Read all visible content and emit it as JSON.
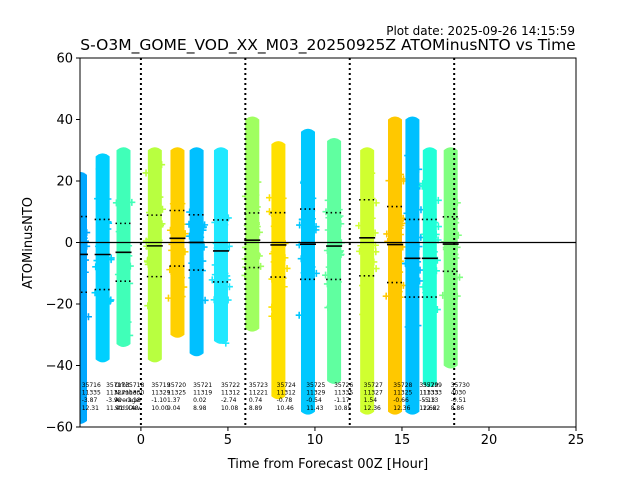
{
  "chart_data": {
    "type": "scatter",
    "title": "S-O3M_GOME_VOD_XX_M03_20250925Z ATOMinusNTO vs Time",
    "plot_date": "Plot date: 2025-09-26 14:15:59",
    "xlabel": "Time from Forecast 00Z [Hour]",
    "ylabel": "ATOMinusNTO",
    "xlim": [
      -3.5,
      25
    ],
    "ylim": [
      -60,
      60
    ],
    "xticks": [
      0,
      5,
      10,
      15,
      20,
      25
    ],
    "yticks": [
      -60,
      -40,
      -20,
      0,
      20,
      40,
      60
    ],
    "vlines": [
      0,
      6,
      12,
      18
    ],
    "hline": 0,
    "legend_labels": [
      "Orbit",
      "Number",
      "Average",
      "Std. Dev."
    ],
    "orbits": [
      {
        "x": -3.5,
        "orbit": "35716",
        "n": "11335",
        "mean": -3.87,
        "std": 12.31,
        "color": "#00a8ff",
        "lo": -60,
        "hi": 25,
        "p_lo": -58,
        "p_hi": 22
      },
      {
        "x": -2.2,
        "orbit": "35717",
        "n": "11327",
        "mean": -3.9,
        "std": 11.41,
        "color": "#00d0ff",
        "lo": -40,
        "hi": 30,
        "p_lo": -38,
        "p_hi": 28
      },
      {
        "x": -1.0,
        "orbit": "35718",
        "n": "11330",
        "mean": -3.18,
        "std": 9.4,
        "color": "#40ffb8",
        "lo": -34,
        "hi": 42,
        "p_lo": -33,
        "p_hi": 30
      },
      {
        "x": 0.8,
        "orbit": "35719",
        "n": "11329",
        "mean": -1.1,
        "std": 10.0,
        "color": "#b8ff40",
        "lo": -40,
        "hi": 39,
        "p_lo": -38,
        "p_hi": 30
      },
      {
        "x": 2.1,
        "orbit": "35720",
        "n": "11325",
        "mean": 1.37,
        "std": 9.04,
        "color": "#ffd000",
        "lo": -32,
        "hi": 38,
        "p_lo": -30,
        "p_hi": 30
      },
      {
        "x": 3.2,
        "orbit": "35721",
        "n": "11319",
        "mean": 0.02,
        "std": 8.98,
        "color": "#00c0ff",
        "lo": -38,
        "hi": 34,
        "p_lo": -36,
        "p_hi": 30
      },
      {
        "x": 4.6,
        "orbit": "35722",
        "n": "11312",
        "mean": -2.74,
        "std": 10.08,
        "color": "#20e8ff",
        "lo": -34,
        "hi": 34,
        "p_lo": -32,
        "p_hi": 30
      },
      {
        "x": 6.4,
        "orbit": "35723",
        "n": "11221",
        "mean": 0.74,
        "std": 8.89,
        "color": "#a0ff60",
        "lo": -36,
        "hi": 50,
        "p_lo": -28,
        "p_hi": 40
      },
      {
        "x": 7.9,
        "orbit": "35724",
        "n": "11312",
        "mean": -0.78,
        "std": 10.46,
        "color": "#ffe000",
        "lo": -58,
        "hi": 38,
        "p_lo": -50,
        "p_hi": 32
      },
      {
        "x": 9.6,
        "orbit": "35725",
        "n": "11329",
        "mean": -0.54,
        "std": 11.43,
        "color": "#00c8ff",
        "lo": -58,
        "hi": 42,
        "p_lo": -55,
        "p_hi": 36
      },
      {
        "x": 11.1,
        "orbit": "35726",
        "n": "11335",
        "mean": -1.17,
        "std": 10.85,
        "color": "#60ffa0",
        "lo": -60,
        "hi": 35,
        "p_lo": -45,
        "p_hi": 33
      },
      {
        "x": 13.0,
        "orbit": "35727",
        "n": "11327",
        "mean": 1.54,
        "std": 12.36,
        "color": "#d0ff30",
        "lo": -60,
        "hi": 35,
        "p_lo": -55,
        "p_hi": 30
      },
      {
        "x": 14.6,
        "orbit": "35728",
        "n": "11325",
        "mean": -0.66,
        "std": 12.36,
        "color": "#ffc800",
        "lo": -60,
        "hi": 44,
        "p_lo": -55,
        "p_hi": 40
      },
      {
        "x": 15.6,
        "orbit": "35729",
        "n": "11333",
        "mean": -5.13,
        "std": 12.62,
        "color": "#00c0ff",
        "lo": -60,
        "hi": 44,
        "p_lo": -55,
        "p_hi": 40
      },
      {
        "x": 16.6,
        "orbit": "35729",
        "n": "11333",
        "mean": -5.13,
        "std": 12.62,
        "color": "#20ffd8",
        "lo": -60,
        "hi": 35,
        "p_lo": -46,
        "p_hi": 30
      },
      {
        "x": 17.8,
        "orbit": "35730",
        "n": "4030",
        "mean": -0.51,
        "std": 8.86,
        "color": "#80ff80",
        "lo": -45,
        "hi": 35,
        "p_lo": -40,
        "p_hi": 30
      }
    ],
    "labels": [
      {
        "x": -3.4,
        "lines": [
          "35716",
          "11335",
          "-3.87",
          "12.31"
        ]
      },
      {
        "x": -2.0,
        "lines": [
          "35717",
          "11327",
          "-3.90",
          "11.41"
        ]
      },
      {
        "x": -1.5,
        "lines": [
          "Orbit",
          "Number",
          "Average",
          "Std. Dev."
        ]
      },
      {
        "x": -0.9,
        "lines": [
          "35718",
          "11330",
          "-3.18",
          "9.40"
        ]
      },
      {
        "x": 0.6,
        "lines": [
          "35719",
          "11329",
          "-1.10",
          "10.00"
        ]
      },
      {
        "x": 1.5,
        "lines": [
          "35720",
          "11325",
          "1.37",
          "9.04"
        ]
      },
      {
        "x": 3.0,
        "lines": [
          "35721",
          "11319",
          "0.02",
          "8.98"
        ]
      },
      {
        "x": 4.6,
        "lines": [
          "35722",
          "11312",
          "-2.74",
          "10.08"
        ]
      },
      {
        "x": 6.2,
        "lines": [
          "35723",
          "11221",
          "0.74",
          "8.89"
        ]
      },
      {
        "x": 7.8,
        "lines": [
          "35724",
          "11312",
          "-0.78",
          "10.46"
        ]
      },
      {
        "x": 9.5,
        "lines": [
          "35725",
          "11329",
          "-0.54",
          "11.43"
        ]
      },
      {
        "x": 11.1,
        "lines": [
          "35726",
          "11335",
          "-1.17",
          "10.85"
        ]
      },
      {
        "x": 12.8,
        "lines": [
          "35727",
          "11327",
          "1.54",
          "12.36"
        ]
      },
      {
        "x": 14.5,
        "lines": [
          "35728",
          "11325",
          "-0.66",
          "12.36"
        ]
      },
      {
        "x": 16.0,
        "lines": [
          "35729",
          "11333",
          "-5.13",
          "12.62"
        ]
      },
      {
        "x": 16.2,
        "lines": [
          "35729",
          "11333",
          "-5.13",
          "12.62"
        ]
      },
      {
        "x": 17.8,
        "lines": [
          "35730",
          "4030",
          "-0.51",
          "8.86"
        ]
      }
    ]
  }
}
